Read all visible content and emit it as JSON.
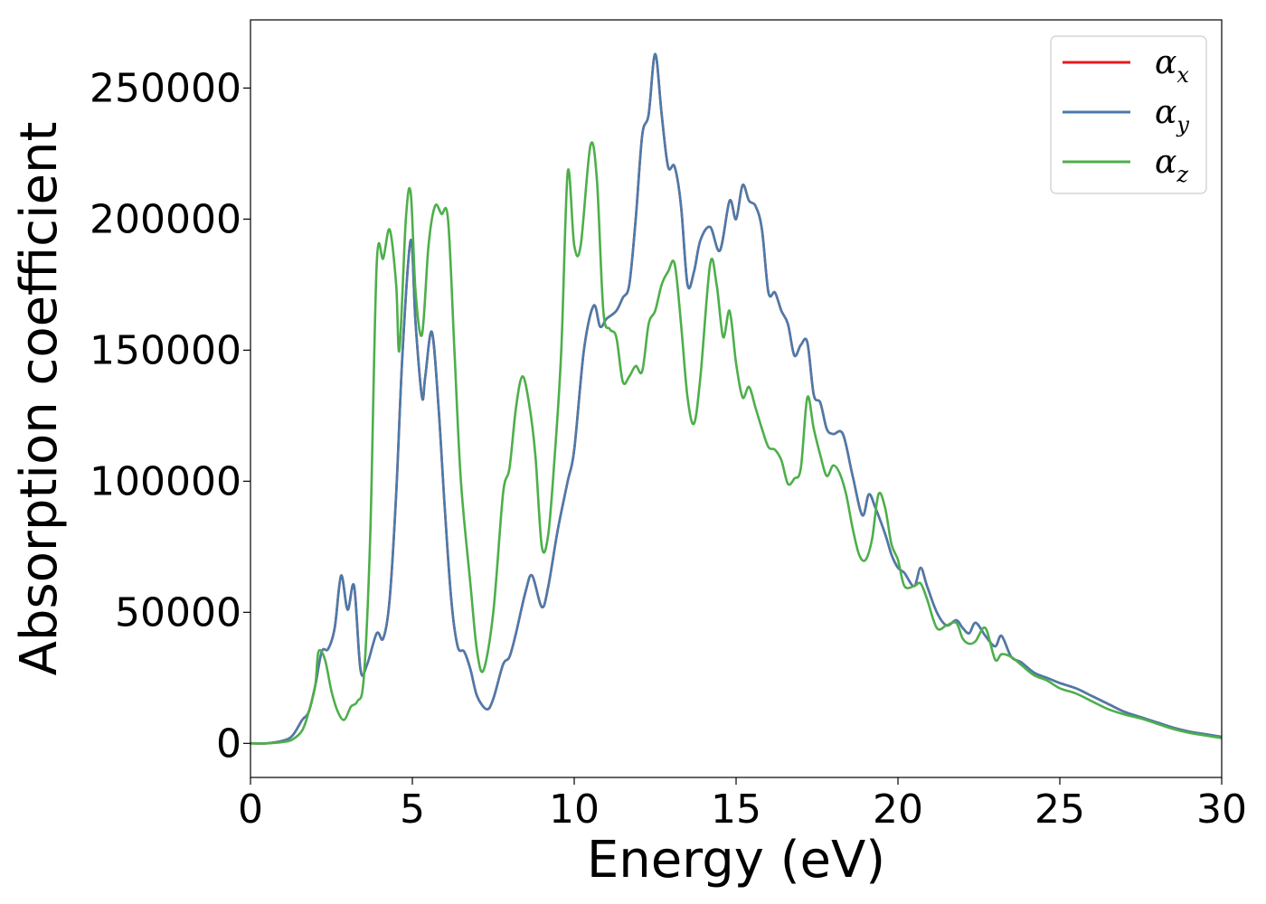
{
  "chart_data": {
    "type": "line",
    "title": "",
    "xlabel": "Energy (eV)",
    "ylabel": "Absorption coefficient",
    "xlim": [
      0,
      30
    ],
    "ylim": [
      -13000,
      276000
    ],
    "x_ticks": [
      0,
      5,
      10,
      15,
      20,
      25,
      30
    ],
    "y_ticks": [
      0,
      50000,
      100000,
      150000,
      200000,
      250000
    ],
    "grid": false,
    "legend": "top-right",
    "series": [
      {
        "name": "αx",
        "name_base": "α",
        "name_sub": "x",
        "color": "#e41a1c",
        "x": [
          0,
          0.5,
          1.0,
          1.3,
          1.6,
          1.8,
          2.0,
          2.2,
          2.4,
          2.6,
          2.8,
          3.0,
          3.2,
          3.4,
          3.6,
          3.9,
          4.1,
          4.3,
          4.5,
          4.7,
          4.95,
          5.1,
          5.3,
          5.4,
          5.6,
          5.8,
          6.0,
          6.2,
          6.4,
          6.6,
          6.8,
          7.0,
          7.3,
          7.5,
          7.8,
          8.0,
          8.2,
          8.5,
          8.7,
          9.0,
          9.2,
          9.5,
          9.8,
          10.0,
          10.3,
          10.6,
          10.8,
          11.0,
          11.3,
          11.5,
          11.7,
          11.9,
          12.1,
          12.3,
          12.5,
          12.7,
          12.9,
          13.1,
          13.3,
          13.5,
          13.7,
          13.9,
          14.2,
          14.5,
          14.8,
          15.0,
          15.2,
          15.4,
          15.6,
          15.8,
          16.0,
          16.2,
          16.4,
          16.6,
          16.8,
          17.0,
          17.2,
          17.4,
          17.6,
          17.8,
          18.0,
          18.3,
          18.6,
          18.9,
          19.1,
          19.3,
          19.6,
          19.8,
          20.0,
          20.2,
          20.5,
          20.7,
          20.9,
          21.2,
          21.5,
          21.8,
          22.0,
          22.2,
          22.4,
          22.7,
          23.0,
          23.2,
          23.5,
          23.8,
          24.2,
          24.6,
          25.0,
          25.5,
          26.0,
          26.5,
          27.0,
          27.5,
          28.0,
          28.5,
          29.0,
          29.5,
          30.0
        ],
        "y": [
          0,
          0,
          1000,
          3000,
          9000,
          12000,
          22000,
          35000,
          36000,
          44000,
          64000,
          51000,
          60000,
          28000,
          30000,
          42000,
          40000,
          55000,
          95000,
          150000,
          192000,
          160000,
          132000,
          140000,
          157000,
          130000,
          90000,
          55000,
          37000,
          35000,
          28000,
          18000,
          13000,
          17000,
          30000,
          33000,
          42000,
          58000,
          64000,
          52000,
          60000,
          82000,
          100000,
          112000,
          150000,
          167000,
          159000,
          162000,
          165000,
          170000,
          175000,
          200000,
          232000,
          240000,
          263000,
          240000,
          220000,
          220000,
          205000,
          175000,
          180000,
          192000,
          197000,
          188000,
          207000,
          200000,
          213000,
          207000,
          205000,
          196000,
          172000,
          172000,
          165000,
          160000,
          148000,
          152000,
          153000,
          133000,
          130000,
          120000,
          118000,
          118000,
          102000,
          87000,
          95000,
          90000,
          80000,
          72000,
          67000,
          65000,
          60000,
          67000,
          60000,
          50000,
          45000,
          47000,
          44000,
          42000,
          46000,
          41000,
          37000,
          41000,
          33000,
          31000,
          27000,
          25000,
          23000,
          21000,
          18000,
          15000,
          12000,
          10000,
          8000,
          6000,
          4500,
          3500,
          2500
        ]
      },
      {
        "name": "αy",
        "name_base": "α",
        "name_sub": "y",
        "color": "#4a7bab",
        "x": [
          0,
          0.5,
          1.0,
          1.3,
          1.6,
          1.8,
          2.0,
          2.2,
          2.4,
          2.6,
          2.8,
          3.0,
          3.2,
          3.4,
          3.6,
          3.9,
          4.1,
          4.3,
          4.5,
          4.7,
          4.95,
          5.1,
          5.3,
          5.4,
          5.6,
          5.8,
          6.0,
          6.2,
          6.4,
          6.6,
          6.8,
          7.0,
          7.3,
          7.5,
          7.8,
          8.0,
          8.2,
          8.5,
          8.7,
          9.0,
          9.2,
          9.5,
          9.8,
          10.0,
          10.3,
          10.6,
          10.8,
          11.0,
          11.3,
          11.5,
          11.7,
          11.9,
          12.1,
          12.3,
          12.5,
          12.7,
          12.9,
          13.1,
          13.3,
          13.5,
          13.7,
          13.9,
          14.2,
          14.5,
          14.8,
          15.0,
          15.2,
          15.4,
          15.6,
          15.8,
          16.0,
          16.2,
          16.4,
          16.6,
          16.8,
          17.0,
          17.2,
          17.4,
          17.6,
          17.8,
          18.0,
          18.3,
          18.6,
          18.9,
          19.1,
          19.3,
          19.6,
          19.8,
          20.0,
          20.2,
          20.5,
          20.7,
          20.9,
          21.2,
          21.5,
          21.8,
          22.0,
          22.2,
          22.4,
          22.7,
          23.0,
          23.2,
          23.5,
          23.8,
          24.2,
          24.6,
          25.0,
          25.5,
          26.0,
          26.5,
          27.0,
          27.5,
          28.0,
          28.5,
          29.0,
          29.5,
          30.0
        ],
        "y": [
          0,
          0,
          1000,
          3000,
          9000,
          12000,
          22000,
          35000,
          36000,
          44000,
          64000,
          51000,
          60000,
          28000,
          30000,
          42000,
          40000,
          55000,
          95000,
          150000,
          192000,
          160000,
          132000,
          140000,
          157000,
          130000,
          90000,
          55000,
          37000,
          35000,
          28000,
          18000,
          13000,
          17000,
          30000,
          33000,
          42000,
          58000,
          64000,
          52000,
          60000,
          82000,
          100000,
          112000,
          150000,
          167000,
          159000,
          162000,
          165000,
          170000,
          175000,
          200000,
          232000,
          240000,
          263000,
          240000,
          220000,
          220000,
          205000,
          175000,
          180000,
          192000,
          197000,
          188000,
          207000,
          200000,
          213000,
          207000,
          205000,
          196000,
          172000,
          172000,
          165000,
          160000,
          148000,
          152000,
          153000,
          133000,
          130000,
          120000,
          118000,
          118000,
          102000,
          87000,
          95000,
          90000,
          80000,
          72000,
          67000,
          65000,
          60000,
          67000,
          60000,
          50000,
          45000,
          47000,
          44000,
          42000,
          46000,
          41000,
          37000,
          41000,
          33000,
          31000,
          27000,
          25000,
          23000,
          21000,
          18000,
          15000,
          12000,
          10000,
          8000,
          6000,
          4500,
          3500,
          2500
        ]
      },
      {
        "name": "αz",
        "name_base": "α",
        "name_sub": "z",
        "color": "#4daf4a",
        "x": [
          0,
          0.5,
          1.0,
          1.3,
          1.6,
          1.8,
          2.0,
          2.1,
          2.3,
          2.5,
          2.7,
          2.9,
          3.1,
          3.3,
          3.5,
          3.7,
          3.9,
          4.1,
          4.3,
          4.5,
          4.6,
          4.8,
          4.95,
          5.1,
          5.3,
          5.5,
          5.7,
          5.9,
          6.1,
          6.3,
          6.5,
          6.8,
          7.0,
          7.2,
          7.5,
          7.8,
          8.0,
          8.2,
          8.4,
          8.6,
          8.8,
          9.0,
          9.2,
          9.4,
          9.6,
          9.8,
          10.0,
          10.2,
          10.5,
          10.7,
          10.9,
          11.1,
          11.3,
          11.5,
          11.7,
          11.9,
          12.1,
          12.3,
          12.5,
          12.7,
          12.9,
          13.1,
          13.3,
          13.5,
          13.7,
          13.9,
          14.2,
          14.4,
          14.6,
          14.8,
          15.0,
          15.2,
          15.4,
          15.6,
          15.8,
          16.0,
          16.2,
          16.4,
          16.6,
          16.8,
          17.0,
          17.2,
          17.4,
          17.6,
          17.8,
          18.0,
          18.2,
          18.4,
          18.6,
          18.8,
          19.0,
          19.2,
          19.4,
          19.6,
          19.8,
          20.0,
          20.2,
          20.5,
          20.7,
          20.9,
          21.2,
          21.5,
          21.8,
          22.0,
          22.2,
          22.4,
          22.7,
          23.0,
          23.2,
          23.5,
          23.8,
          24.2,
          24.6,
          25.0,
          25.5,
          26.0,
          26.5,
          27.0,
          27.5,
          28.0,
          28.5,
          29.0,
          29.5,
          30.0
        ],
        "y": [
          0,
          0,
          500,
          1500,
          5000,
          12000,
          22000,
          35000,
          32000,
          20000,
          12000,
          9000,
          14000,
          16000,
          25000,
          80000,
          183000,
          185000,
          196000,
          175000,
          150000,
          200000,
          210000,
          172000,
          156000,
          190000,
          205000,
          202000,
          200000,
          150000,
          100000,
          60000,
          35000,
          28000,
          50000,
          95000,
          105000,
          128000,
          140000,
          130000,
          110000,
          75000,
          80000,
          110000,
          150000,
          218000,
          190000,
          190000,
          228000,
          215000,
          165000,
          158000,
          155000,
          138000,
          140000,
          144000,
          142000,
          160000,
          165000,
          175000,
          180000,
          183000,
          160000,
          132000,
          122000,
          140000,
          183000,
          175000,
          155000,
          165000,
          145000,
          132000,
          136000,
          128000,
          120000,
          113000,
          112000,
          108000,
          99000,
          101000,
          105000,
          132000,
          120000,
          110000,
          102000,
          106000,
          103000,
          95000,
          82000,
          72000,
          70000,
          78000,
          95000,
          90000,
          76000,
          70000,
          60000,
          60000,
          61000,
          55000,
          44000,
          45000,
          46000,
          40000,
          38000,
          39000,
          44000,
          32000,
          34000,
          33000,
          30000,
          26000,
          24000,
          21000,
          19000,
          16000,
          13000,
          11000,
          9500,
          7500,
          5500,
          4000,
          3000,
          2000
        ]
      }
    ]
  }
}
